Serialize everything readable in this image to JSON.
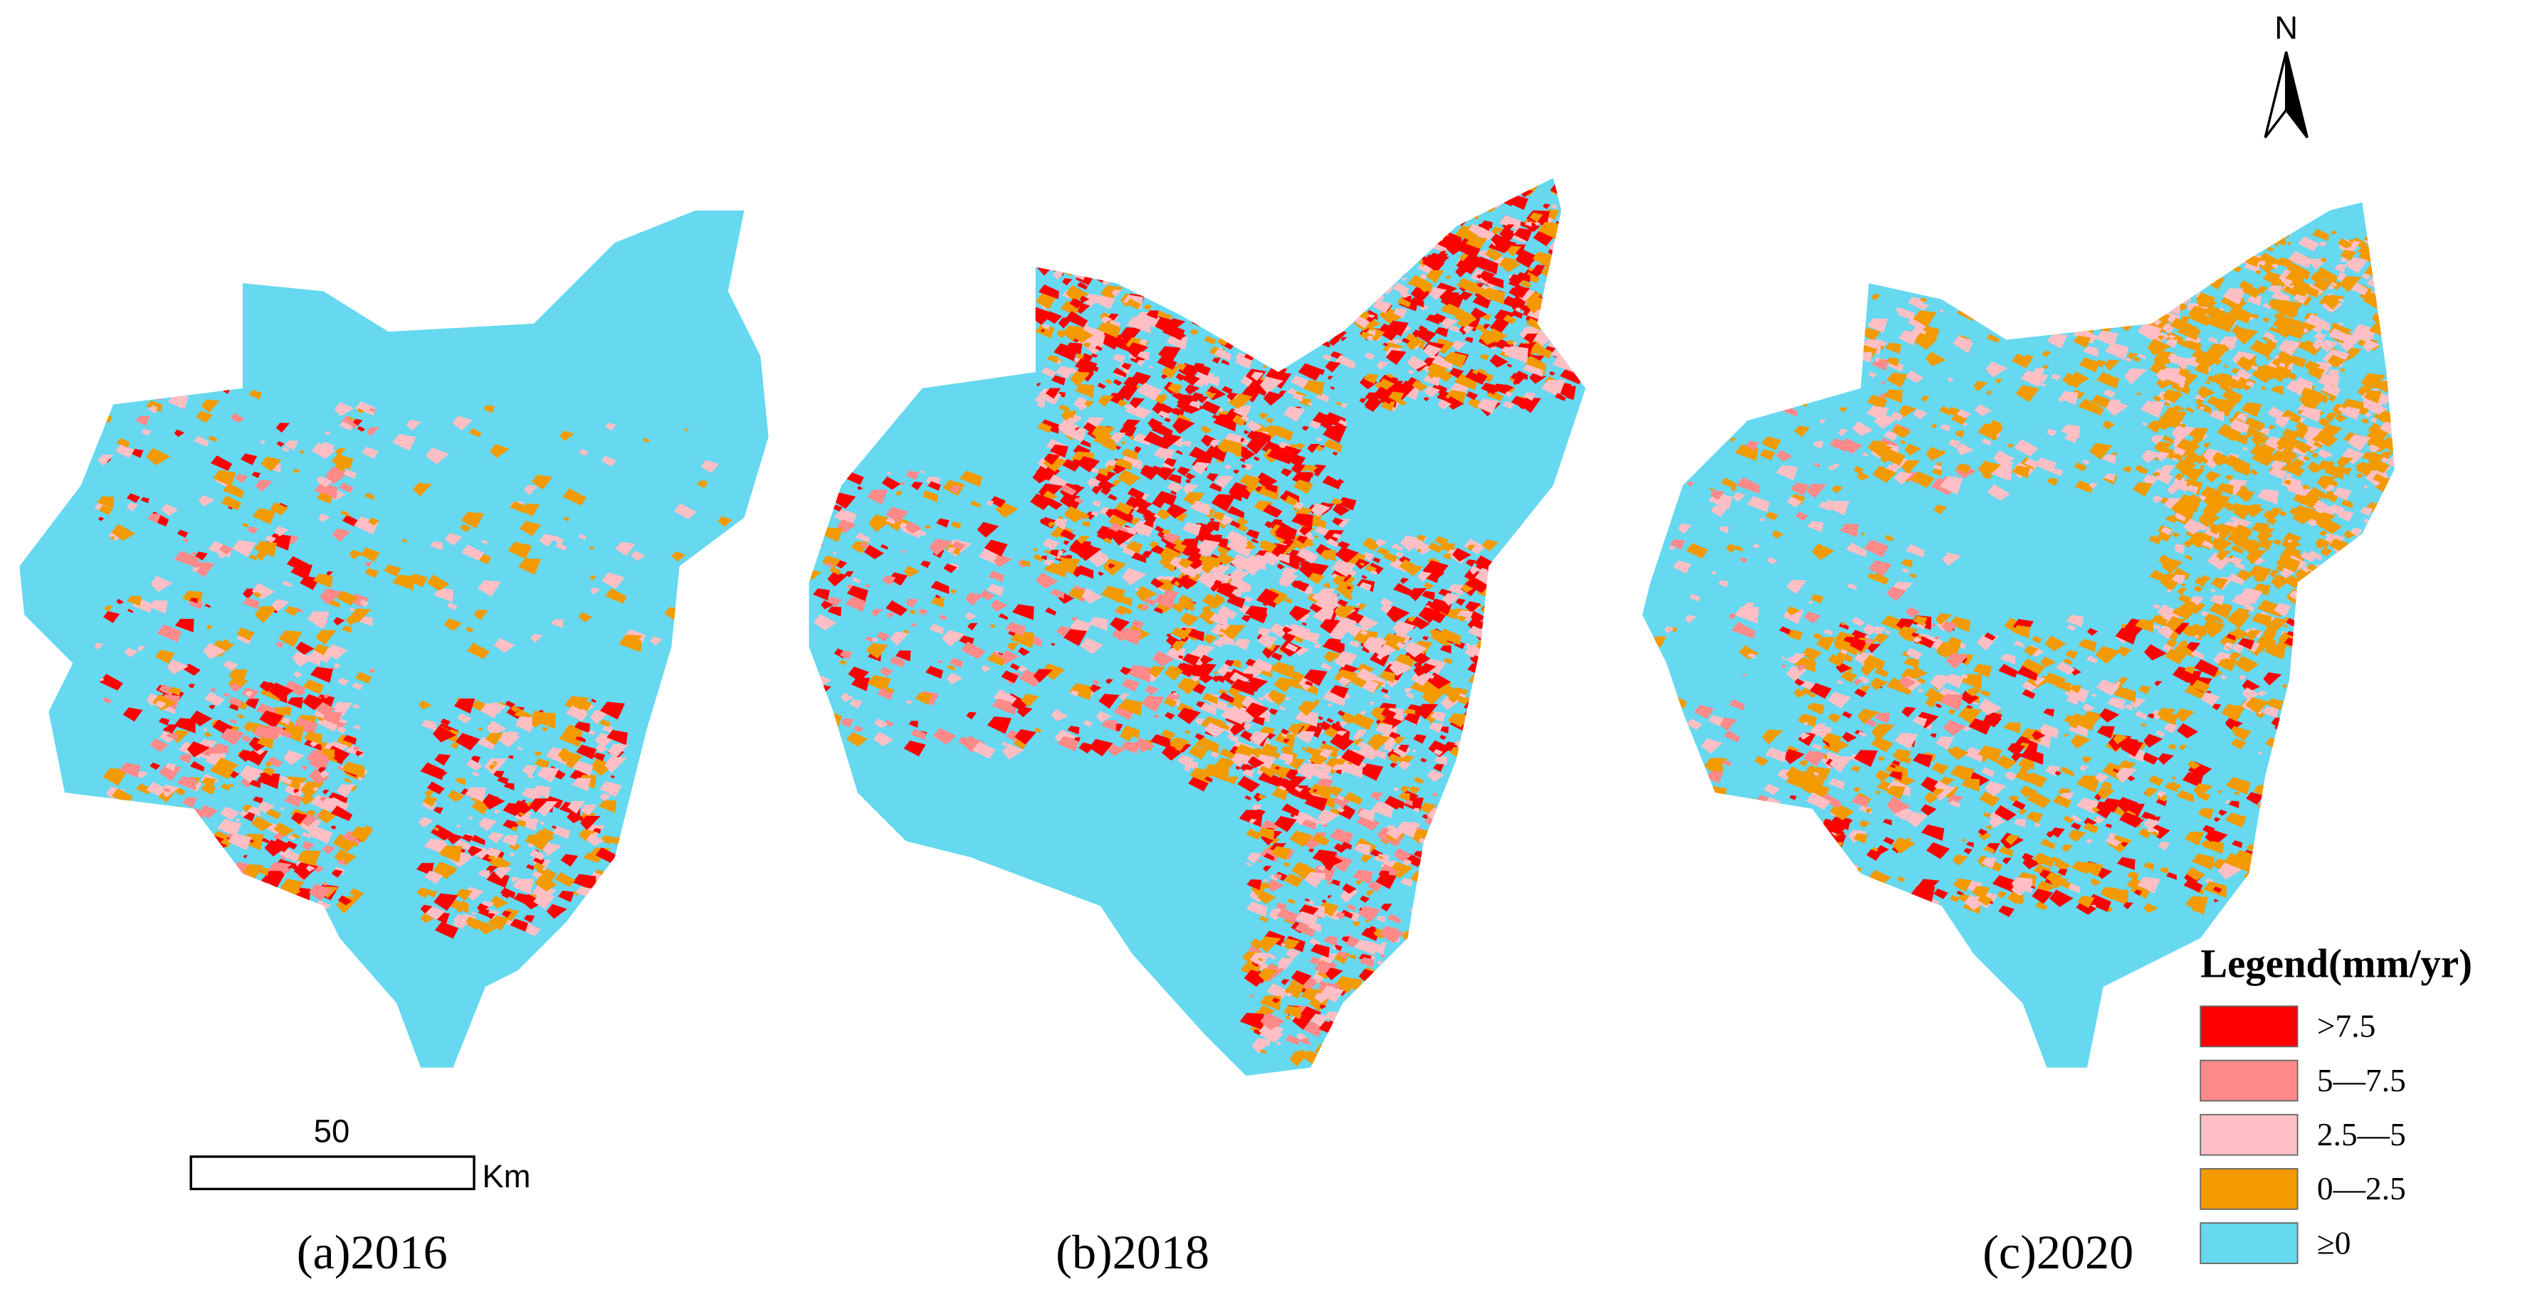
{
  "panels": [
    {
      "label": "(a)2016"
    },
    {
      "label": "(b)2018"
    },
    {
      "label": "(c)2020"
    }
  ],
  "legend": {
    "title": "Legend(mm/yr)",
    "items": [
      {
        "label": ">7.5",
        "color": "#ff0000"
      },
      {
        "label": "5—7.5",
        "color": "#ff8a8a"
      },
      {
        "label": "2.5—5",
        "color": "#ffbfc4"
      },
      {
        "label": "0—2.5",
        "color": "#f29a00"
      },
      {
        "label": "≥0",
        "color": "#66d8f0"
      }
    ]
  },
  "scale_bar": {
    "value": "50",
    "unit": "Km"
  },
  "north_arrow": {
    "label": "N"
  }
}
